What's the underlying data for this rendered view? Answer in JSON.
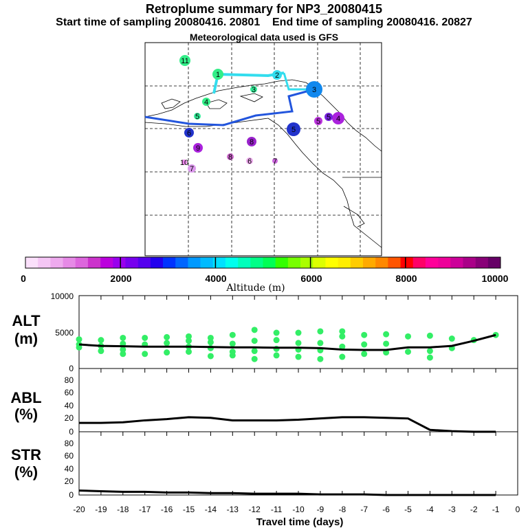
{
  "header": {
    "title": "Retroplume summary for NP3_20080415",
    "start_label": "Start time of sampling 20080416. 20801",
    "end_label": "End time of sampling 20080416. 20827",
    "met_label": "Meteorological data used is GFS"
  },
  "chart_data": [
    {
      "type": "map-trajectory",
      "title": "Retroplume clusters (map)",
      "centroid_labels": [
        "1",
        "2",
        "3",
        "4",
        "5",
        "6",
        "7",
        "8",
        "9",
        "10",
        "11"
      ],
      "colorbar": {
        "label": "Altitude (m)",
        "tick_labels": [
          "0",
          "2000",
          "4000",
          "6000",
          "8000",
          "10000"
        ],
        "range": [
          0,
          10000
        ],
        "colors": [
          "#fbe0fb",
          "#f5c6f5",
          "#eeaaee",
          "#e68ae6",
          "#dd66dd",
          "#cc33cc",
          "#bb00dd",
          "#9900ee",
          "#7700ee",
          "#5500ee",
          "#2200ee",
          "#0033ff",
          "#0066ff",
          "#0099ff",
          "#00bbff",
          "#00e0ff",
          "#00ffee",
          "#00ffbb",
          "#00ff88",
          "#00ff55",
          "#33ff00",
          "#77ff00",
          "#aaff00",
          "#ddff00",
          "#ffff00",
          "#ffee00",
          "#ffcc00",
          "#ffaa00",
          "#ff8800",
          "#ff5500",
          "#ff0000",
          "#ff0066",
          "#ff0099",
          "#ee0099",
          "#cc0099",
          "#aa0088",
          "#880077",
          "#660066"
        ]
      }
    },
    {
      "type": "scatter+line",
      "panel": "ALT",
      "ylabel": "ALT (m)",
      "ylim": [
        0,
        10000
      ],
      "ytick_labels": [
        "10000",
        "5000",
        "0"
      ],
      "x": [
        -20,
        -19,
        -18,
        -17,
        -16,
        -15,
        -14,
        -13,
        -12,
        -11,
        -10,
        -9,
        -8,
        -7,
        -6,
        -5,
        -4,
        -3,
        -2,
        -1
      ],
      "mean_altitude": [
        3300,
        3100,
        3050,
        3000,
        3000,
        3000,
        2950,
        2900,
        2900,
        2850,
        2850,
        2800,
        2600,
        2550,
        2550,
        2900,
        2900,
        3100,
        3800,
        4600
      ],
      "cluster_altitudes": [
        [
          4000,
          3300,
          2900
        ],
        [
          3900,
          3100,
          2400
        ],
        [
          4200,
          3400,
          2600,
          2000
        ],
        [
          4200,
          3300,
          2000
        ],
        [
          4300,
          3500,
          2200
        ],
        [
          4400,
          3800,
          3000,
          2300
        ],
        [
          4200,
          3600,
          2800,
          1700
        ],
        [
          4600,
          3400,
          2300,
          1800
        ],
        [
          5300,
          3800,
          2400,
          1300
        ],
        [
          4900,
          3900,
          2700,
          1800
        ],
        [
          4900,
          3500,
          2600,
          1600
        ],
        [
          5100,
          3500,
          2500,
          1300
        ],
        [
          5100,
          4400,
          3000,
          1600
        ],
        [
          4600,
          3300,
          2000
        ],
        [
          4700,
          3400,
          2200
        ],
        [
          4400,
          2300
        ],
        [
          4500,
          2400,
          1500
        ],
        [
          4100,
          2800
        ],
        [
          3900
        ],
        [
          4600
        ]
      ],
      "xlim": [
        -20,
        0
      ]
    },
    {
      "type": "line",
      "panel": "ABL",
      "ylabel": "ABL (%)",
      "ylim": [
        0,
        100
      ],
      "ytick_labels": [
        "80",
        "60",
        "40",
        "20",
        "0"
      ],
      "x": [
        -20,
        -19,
        -18,
        -17,
        -16,
        -15,
        -14,
        -13,
        -12,
        -11,
        -10,
        -9,
        -8,
        -7,
        -6,
        -5,
        -4,
        -3,
        -2,
        -1
      ],
      "values": [
        14,
        14,
        15,
        18,
        20,
        23,
        22,
        18,
        18,
        18,
        19,
        21,
        23,
        23,
        22,
        21,
        3,
        1,
        0,
        0
      ],
      "xlim": [
        -20,
        0
      ]
    },
    {
      "type": "line",
      "panel": "STR",
      "ylabel": "STR (%)",
      "ylim": [
        0,
        100
      ],
      "ytick_labels": [
        "80",
        "60",
        "40",
        "20",
        "0"
      ],
      "x": [
        -20,
        -19,
        -18,
        -17,
        -16,
        -15,
        -14,
        -13,
        -12,
        -11,
        -10,
        -9,
        -8,
        -7,
        -6,
        -5,
        -4,
        -3,
        -2,
        -1
      ],
      "values": [
        7,
        6,
        5,
        5,
        4,
        4,
        3,
        3,
        2,
        2,
        2,
        1,
        1,
        1,
        0,
        0,
        0,
        0,
        0,
        0
      ],
      "xlabel": "Travel time (days)",
      "xtick_labels": [
        "-20",
        "-19",
        "-18",
        "-17",
        "-16",
        "-15",
        "-14",
        "-13",
        "-12",
        "-11",
        "-10",
        "-9",
        "-8",
        "-7",
        "-6",
        "-5",
        "-4",
        "-3",
        "-2",
        "-1",
        "0"
      ],
      "xlim": [
        -20,
        0
      ]
    }
  ],
  "styles": {
    "dot_color": "#33ee66",
    "line_color": "#000000",
    "map_track_colors": [
      "#22ccaa",
      "#33ddee",
      "#1199ee",
      "#2255dd"
    ]
  }
}
